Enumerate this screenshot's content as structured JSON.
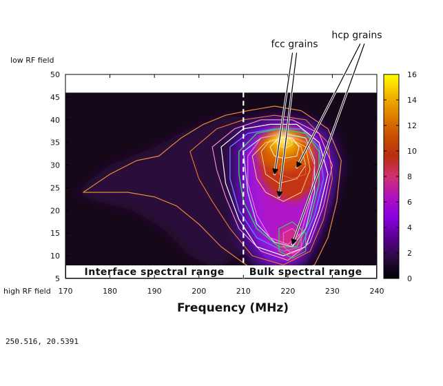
{
  "chart_data": {
    "type": "heatmap",
    "xlabel": "Frequency (MHz)",
    "x_ticks": [
      170,
      180,
      190,
      200,
      210,
      220,
      230,
      240
    ],
    "y_ticks": [
      5,
      10,
      15,
      20,
      25,
      30,
      35,
      40,
      45,
      50
    ],
    "xlim": [
      170,
      240
    ],
    "ylim": [
      5,
      50
    ],
    "data_ylim": [
      5,
      46
    ],
    "y_top_label": "low RF field",
    "y_bottom_label": "high RF field",
    "colorbar": {
      "ticks": [
        0,
        2,
        4,
        6,
        8,
        10,
        12,
        14,
        16
      ],
      "range": [
        0,
        16
      ],
      "stops": [
        "#000000",
        "#2a0a40",
        "#5a0090",
        "#8a00e0",
        "#b010c0",
        "#d03070",
        "#b83010",
        "#c85000",
        "#e08000",
        "#f4b800",
        "#ffff00"
      ]
    },
    "peaks": [
      {
        "x": 219,
        "y": 35.5,
        "intensity": 16
      },
      {
        "x": 221.5,
        "y": 30,
        "intensity": 9
      },
      {
        "x": 217,
        "y": 28,
        "intensity": 9
      },
      {
        "x": 221,
        "y": 13,
        "intensity": 7
      }
    ],
    "divider_x": 210,
    "regions": [
      {
        "label": "Interface spectral range",
        "x_center": 190
      },
      {
        "label": "Bulk spectral range",
        "x_center": 224
      }
    ],
    "annotations": [
      {
        "label": "fcc grains",
        "text_x": 221.5,
        "text_y": 56,
        "targets": [
          [
            217,
            28
          ],
          [
            218,
            23
          ]
        ]
      },
      {
        "label": "hcp grains",
        "text_x": 235.5,
        "text_y": 58,
        "targets": [
          [
            222,
            29.5
          ],
          [
            221,
            12.5
          ]
        ]
      }
    ]
  },
  "status": {
    "coordinates": "250.516,  20.5391"
  }
}
